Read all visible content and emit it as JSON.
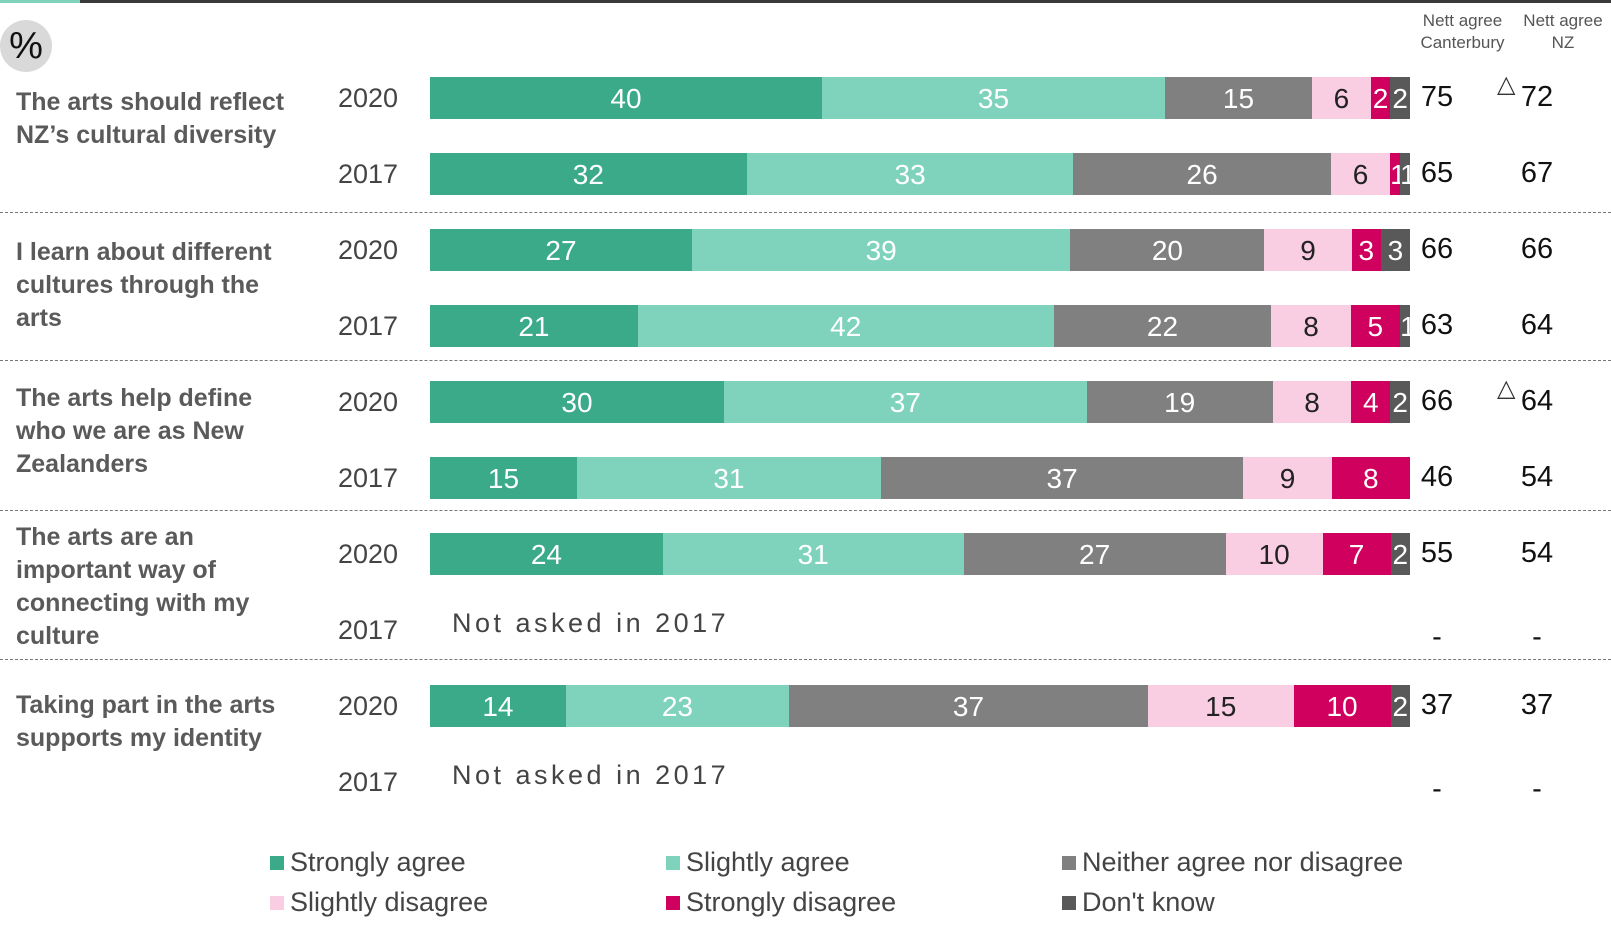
{
  "header": {
    "unit_badge": "%",
    "col_canterbury": [
      "Nett agree",
      "Canterbury"
    ],
    "col_nz": [
      "Nett agree",
      "NZ"
    ]
  },
  "colors": {
    "strongly_agree": "#3aaa89",
    "slightly_agree": "#7fd3bd",
    "neither": "#808080",
    "slightly_disagree": "#f9cde2",
    "strongly_disagree": "#d0005e",
    "dont_know": "#595959"
  },
  "not_asked_text": "Not asked in 2017",
  "legend": [
    {
      "label": "Strongly agree",
      "key": "strongly_agree"
    },
    {
      "label": "Slightly agree",
      "key": "slightly_agree"
    },
    {
      "label": "Neither agree nor disagree",
      "key": "neither"
    },
    {
      "label": "Slightly disagree",
      "key": "slightly_disagree"
    },
    {
      "label": "Strongly disagree",
      "key": "strongly_disagree"
    },
    {
      "label": "Don't know",
      "key": "dont_know"
    }
  ],
  "chart_data": {
    "type": "bar",
    "orientation": "horizontal-stacked",
    "unit": "%",
    "series_order": [
      "Strongly agree",
      "Slightly agree",
      "Neither agree nor disagree",
      "Slightly disagree",
      "Strongly disagree",
      "Don't know"
    ],
    "statements": [
      {
        "label": "The arts should reflect NZ’s cultural diversity",
        "rows": [
          {
            "year": "2020",
            "values": [
              40,
              35,
              15,
              6,
              2,
              2
            ],
            "nett_canterbury": "75",
            "nett_nz": "72",
            "significant_increase": true
          },
          {
            "year": "2017",
            "values": [
              32,
              33,
              26,
              6,
              1,
              1
            ],
            "nett_canterbury": "65",
            "nett_nz": "67",
            "significant_increase": false
          }
        ]
      },
      {
        "label": "I learn about different cultures through the arts",
        "rows": [
          {
            "year": "2020",
            "values": [
              27,
              39,
              20,
              9,
              3,
              3
            ],
            "nett_canterbury": "66",
            "nett_nz": "66",
            "significant_increase": false
          },
          {
            "year": "2017",
            "values": [
              21,
              42,
              22,
              8,
              5,
              1
            ],
            "nett_canterbury": "63",
            "nett_nz": "64",
            "significant_increase": false
          }
        ]
      },
      {
        "label": "The arts help define who we are as New Zealanders",
        "rows": [
          {
            "year": "2020",
            "values": [
              30,
              37,
              19,
              8,
              4,
              2
            ],
            "nett_canterbury": "66",
            "nett_nz": "64",
            "significant_increase": true
          },
          {
            "year": "2017",
            "values": [
              15,
              31,
              37,
              9,
              8,
              0
            ],
            "nett_canterbury": "46",
            "nett_nz": "54",
            "significant_increase": false
          }
        ]
      },
      {
        "label": "The arts are an important way of connecting with my culture",
        "rows": [
          {
            "year": "2020",
            "values": [
              24,
              31,
              27,
              10,
              7,
              2
            ],
            "nett_canterbury": "55",
            "nett_nz": "54",
            "significant_increase": false
          },
          {
            "year": "2017",
            "values": null,
            "nett_canterbury": "-",
            "nett_nz": "-",
            "significant_increase": false
          }
        ]
      },
      {
        "label": "Taking part in the arts supports my identity",
        "rows": [
          {
            "year": "2020",
            "values": [
              14,
              23,
              37,
              15,
              10,
              2
            ],
            "nett_canterbury": "37",
            "nett_nz": "37",
            "significant_increase": false
          },
          {
            "year": "2017",
            "values": null,
            "nett_canterbury": "-",
            "nett_nz": "-",
            "significant_increase": false
          }
        ]
      }
    ]
  }
}
